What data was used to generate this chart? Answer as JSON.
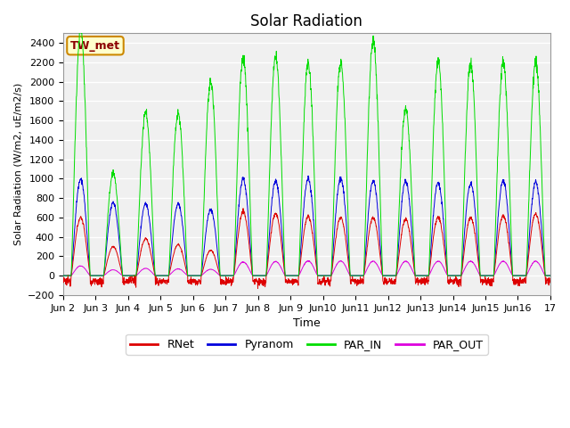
{
  "title": "Solar Radiation",
  "ylabel": "Solar Radiation (W/m2, uE/m2/s)",
  "xlabel": "Time",
  "ylim": [
    -200,
    2500
  ],
  "yticks": [
    -200,
    0,
    200,
    400,
    600,
    800,
    1000,
    1200,
    1400,
    1600,
    1800,
    2000,
    2200,
    2400
  ],
  "colors": {
    "RNet": "#dd0000",
    "Pyranom": "#0000dd",
    "PAR_IN": "#00dd00",
    "PAR_OUT": "#dd00dd"
  },
  "plot_bg": "#e8e8e8",
  "legend_label": "TW_met",
  "legend_bg": "#ffffcc",
  "legend_border": "#cc8800",
  "n_days": 15,
  "start_day": 2,
  "figsize": [
    6.4,
    4.8
  ],
  "dpi": 100
}
